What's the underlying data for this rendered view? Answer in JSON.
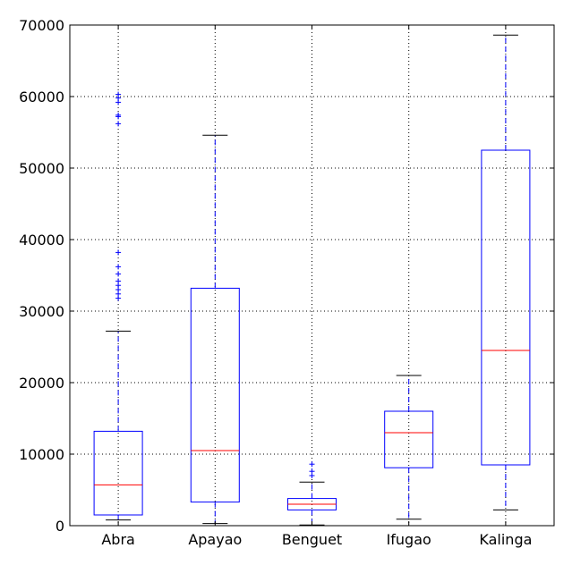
{
  "chart_data": {
    "type": "boxplot",
    "title": "",
    "xlabel": "",
    "ylabel": "",
    "ylim": [
      0,
      70000
    ],
    "yticks": [
      0,
      10000,
      20000,
      30000,
      40000,
      50000,
      60000,
      70000
    ],
    "ytick_labels": [
      "0",
      "10000",
      "20000",
      "30000",
      "40000",
      "50000",
      "60000",
      "70000"
    ],
    "grid": true,
    "categories": [
      "Abra",
      "Apayao",
      "Benguet",
      "Ifugao",
      "Kalinga"
    ],
    "boxes": [
      {
        "label": "Abra",
        "whisker_low": 800,
        "q1": 1500,
        "median": 5700,
        "q3": 13200,
        "whisker_high": 27200,
        "outliers": [
          31800,
          32400,
          33000,
          33600,
          34200,
          35200,
          36200,
          38200,
          56200,
          57200,
          57400,
          59200,
          59800,
          60300
        ]
      },
      {
        "label": "Apayao",
        "whisker_low": 300,
        "q1": 3300,
        "median": 10500,
        "q3": 33200,
        "whisker_high": 54600,
        "outliers": []
      },
      {
        "label": "Benguet",
        "whisker_low": 100,
        "q1": 2200,
        "median": 3000,
        "q3": 3800,
        "whisker_high": 6100,
        "outliers": [
          7000,
          7600,
          8600
        ]
      },
      {
        "label": "Ifugao",
        "whisker_low": 900,
        "q1": 8100,
        "median": 13000,
        "q3": 16000,
        "whisker_high": 21000,
        "outliers": []
      },
      {
        "label": "Kalinga",
        "whisker_low": 2200,
        "q1": 8500,
        "median": 24500,
        "q3": 52500,
        "whisker_high": 68600,
        "outliers": []
      }
    ],
    "colors": {
      "box": "#0000ff",
      "median": "#ff0000",
      "whisker_cap": "#000000",
      "outlier": "#0000ff",
      "grid": "#000000"
    }
  }
}
